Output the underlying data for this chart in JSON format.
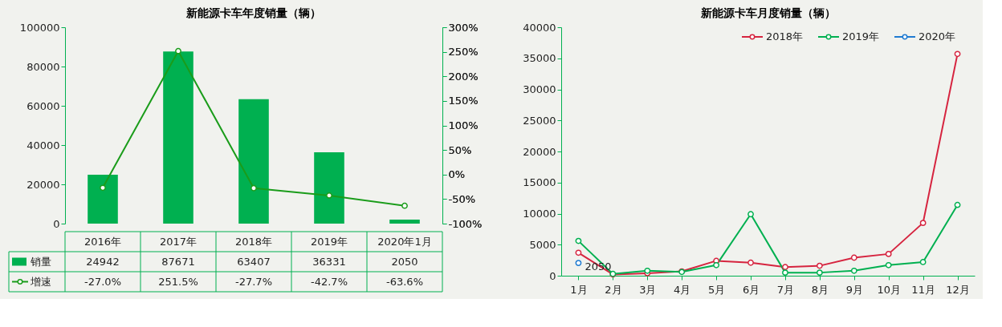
{
  "chart_data": [
    {
      "type": "bar",
      "title": "新能源卡车年度销量（辆）",
      "categories": [
        "2016年",
        "2017年",
        "2018年",
        "2019年",
        "2020年1月"
      ],
      "series": [
        {
          "name": "销量",
          "type": "bar",
          "color": "#00b050",
          "values": [
            24942,
            87671,
            63407,
            36331,
            2050
          ],
          "value_labels": [
            "24942",
            "87671",
            "63407",
            "36331",
            "2050"
          ]
        },
        {
          "name": "增速",
          "type": "line",
          "axis": "y2",
          "color": "#1a9c1a",
          "values": [
            -27.0,
            251.5,
            -27.7,
            -42.7,
            -63.6
          ],
          "value_labels": [
            "-27.0%",
            "251.5%",
            "-27.7%",
            "-42.7%",
            "-63.6%"
          ]
        }
      ],
      "ylim": [
        0,
        100000
      ],
      "yticks": [
        0,
        20000,
        40000,
        60000,
        80000,
        100000
      ],
      "y2lim": [
        -100,
        300
      ],
      "y2ticks": [
        {
          "value": -100,
          "label": "-100%"
        },
        {
          "value": -50,
          "label": "-50%"
        },
        {
          "value": 0,
          "label": "0%"
        },
        {
          "value": 50,
          "label": "50%"
        },
        {
          "value": 100,
          "label": "100%"
        },
        {
          "value": 150,
          "label": "150%"
        },
        {
          "value": 200,
          "label": "200%"
        },
        {
          "value": 250,
          "label": "250%"
        },
        {
          "value": 300,
          "label": "300%"
        }
      ],
      "marker": "circle",
      "grid": false,
      "legend": "bottom left"
    },
    {
      "type": "line",
      "title": "新能源卡车月度销量（辆）",
      "categories": [
        "1月",
        "2月",
        "3月",
        "4月",
        "5月",
        "6月",
        "7月",
        "8月",
        "9月",
        "10月",
        "11月",
        "12月"
      ],
      "series": [
        {
          "name": "2018年",
          "color": "#d6243f",
          "values": [
            3700,
            200,
            400,
            700,
            2400,
            2100,
            1400,
            1600,
            2900,
            3500,
            8500,
            35700
          ]
        },
        {
          "name": "2019年",
          "color": "#00b050",
          "values": [
            5600,
            300,
            800,
            600,
            1700,
            9900,
            500,
            500,
            800,
            1700,
            2200,
            11400
          ]
        },
        {
          "name": "2020年",
          "color": "#1f7bd1",
          "values": [
            2050,
            null,
            null,
            null,
            null,
            null,
            null,
            null,
            null,
            null,
            null,
            null
          ],
          "value_labels": [
            "2050",
            null,
            null,
            null,
            null,
            null,
            null,
            null,
            null,
            null,
            null,
            null
          ]
        }
      ],
      "ylim": [
        0,
        40000
      ],
      "yticks": [
        0,
        5000,
        10000,
        15000,
        20000,
        25000,
        30000,
        35000,
        40000
      ],
      "marker": "circle",
      "grid": false,
      "legend": "top right"
    }
  ]
}
